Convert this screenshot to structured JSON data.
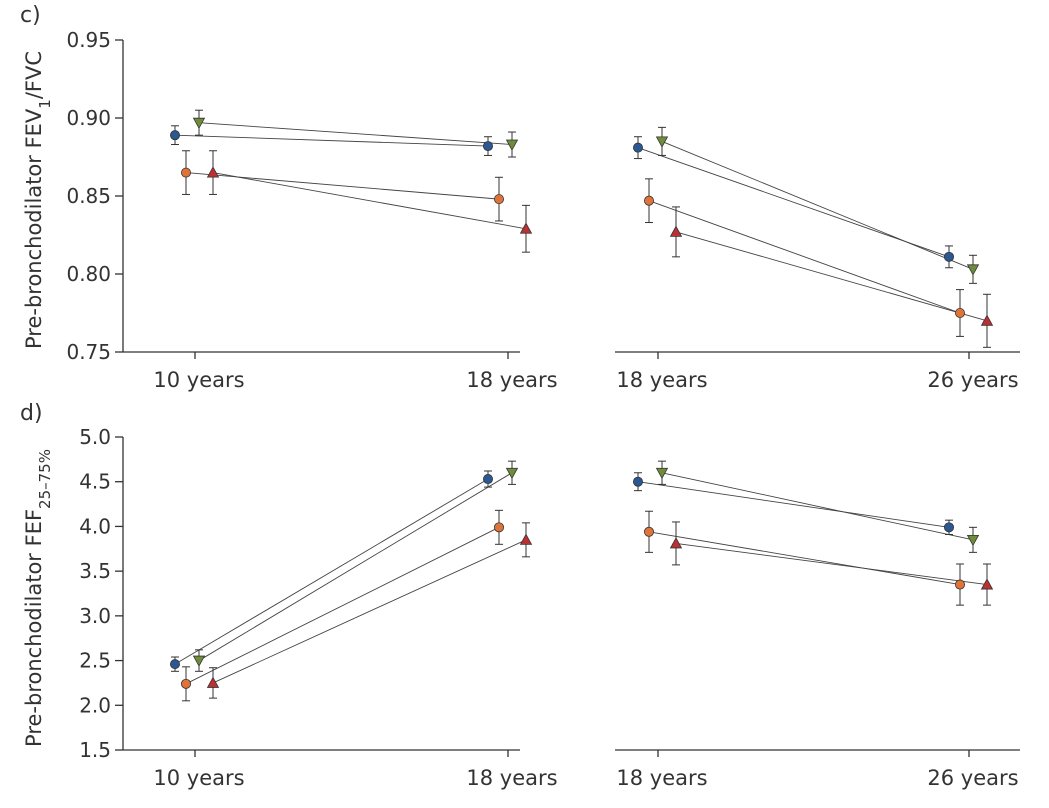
{
  "colors": {
    "circle_blue": "#2b5793",
    "triangle_down_green": "#6e8d3b",
    "circle_orange": "#e0733a",
    "triangle_up_red": "#bb3033"
  },
  "marker_icons": {
    "circle_blue": "circle-marker-icon",
    "triangle_down_green": "triangle-down-marker-icon",
    "circle_orange": "circle-marker-icon",
    "triangle_up_red": "triangle-up-marker-icon"
  },
  "chart_data": [
    {
      "type": "line",
      "panel": "c) left",
      "panel_label": "c)",
      "ylabel": "Pre-bronchodilator FEV₁/FVC",
      "ylabel_main": "Pre-bronchodilator FEV",
      "ylabel_sub": "1",
      "ylabel_tail": "/FVC",
      "categories": [
        "10 years",
        "18 years"
      ],
      "ylim": [
        0.75,
        0.95
      ],
      "yticks": [
        "0.75",
        "0.80",
        "0.85",
        "0.90",
        "0.95"
      ],
      "series": [
        {
          "name": "circle_blue",
          "values": [
            0.889,
            0.882
          ],
          "err": [
            0.006,
            0.006
          ]
        },
        {
          "name": "triangle_down_green",
          "values": [
            0.897,
            0.883
          ],
          "err": [
            0.008,
            0.008
          ]
        },
        {
          "name": "circle_orange",
          "values": [
            0.865,
            0.848
          ],
          "err": [
            0.014,
            0.014
          ]
        },
        {
          "name": "triangle_up_red",
          "values": [
            0.865,
            0.829
          ],
          "err": [
            0.014,
            0.015
          ]
        }
      ]
    },
    {
      "type": "line",
      "panel": "c) right",
      "categories": [
        "18 years",
        "26 years"
      ],
      "ylim": [
        0.75,
        0.95
      ],
      "series": [
        {
          "name": "circle_blue",
          "values": [
            0.881,
            0.811
          ],
          "err": [
            0.007,
            0.007
          ]
        },
        {
          "name": "triangle_down_green",
          "values": [
            0.885,
            0.803
          ],
          "err": [
            0.009,
            0.009
          ]
        },
        {
          "name": "circle_orange",
          "values": [
            0.847,
            0.775
          ],
          "err": [
            0.014,
            0.015
          ]
        },
        {
          "name": "triangle_up_red",
          "values": [
            0.827,
            0.77
          ],
          "err": [
            0.016,
            0.017
          ]
        }
      ]
    },
    {
      "type": "line",
      "panel": "d) left",
      "panel_label": "d)",
      "ylabel": "Pre-bronchodilator FEF25–75%",
      "ylabel_main": "Pre-bronchodilator FEF",
      "ylabel_sub": "25–75%",
      "ylabel_tail": "",
      "categories": [
        "10 years",
        "18 years"
      ],
      "ylim": [
        1.5,
        5.0
      ],
      "yticks": [
        "1.5",
        "2.0",
        "2.5",
        "3.0",
        "3.5",
        "4.0",
        "4.5",
        "5.0"
      ],
      "series": [
        {
          "name": "circle_blue",
          "values": [
            2.46,
            4.53
          ],
          "err": [
            0.08,
            0.09
          ]
        },
        {
          "name": "triangle_down_green",
          "values": [
            2.5,
            4.6
          ],
          "err": [
            0.12,
            0.13
          ]
        },
        {
          "name": "circle_orange",
          "values": [
            2.24,
            3.99
          ],
          "err": [
            0.19,
            0.19
          ]
        },
        {
          "name": "triangle_up_red",
          "values": [
            2.25,
            3.85
          ],
          "err": [
            0.17,
            0.19
          ]
        }
      ]
    },
    {
      "type": "line",
      "panel": "d) right",
      "categories": [
        "18 years",
        "26 years"
      ],
      "ylim": [
        1.5,
        5.0
      ],
      "series": [
        {
          "name": "circle_blue",
          "values": [
            4.5,
            3.99
          ],
          "err": [
            0.1,
            0.08
          ]
        },
        {
          "name": "triangle_down_green",
          "values": [
            4.6,
            3.85
          ],
          "err": [
            0.13,
            0.14
          ]
        },
        {
          "name": "circle_orange",
          "values": [
            3.94,
            3.35
          ],
          "err": [
            0.23,
            0.23
          ]
        },
        {
          "name": "triangle_up_red",
          "values": [
            3.81,
            3.35
          ],
          "err": [
            0.24,
            0.23
          ]
        }
      ]
    }
  ]
}
